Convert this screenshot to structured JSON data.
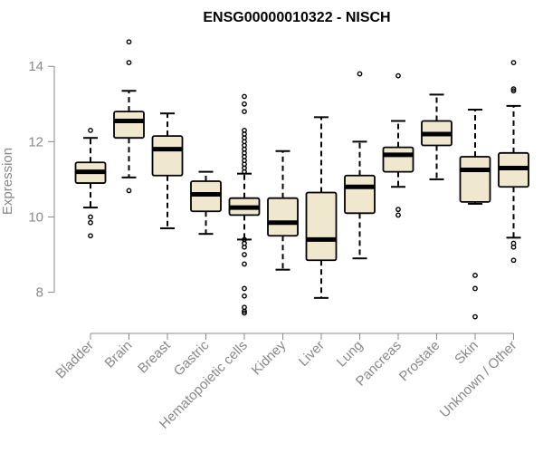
{
  "chart_data": {
    "type": "box",
    "title": "ENSG00000010322 - NISCH",
    "xlabel": "",
    "ylabel": "Expression",
    "ylim": [
      7.1,
      14.8
    ],
    "yticks": [
      8,
      10,
      12,
      14
    ],
    "colors": {
      "box_fill": "#efe8cf",
      "stroke": "#000000",
      "axis": "#888888"
    },
    "categories": [
      "Bladder",
      "Brain",
      "Breast",
      "Gastric",
      "Hematopoietic cells",
      "Kidney",
      "Liver",
      "Lung",
      "Pancreas",
      "Prostate",
      "Skin",
      "Unknown / Other"
    ],
    "boxes": [
      {
        "category": "Bladder",
        "lower_whisker": 10.25,
        "q1": 10.9,
        "median": 11.2,
        "q3": 11.45,
        "upper_whisker": 12.1,
        "outliers": [
          12.3,
          10.0,
          9.85,
          9.5
        ]
      },
      {
        "category": "Brain",
        "lower_whisker": 11.05,
        "q1": 12.1,
        "median": 12.55,
        "q3": 12.8,
        "upper_whisker": 13.35,
        "outliers": [
          14.65,
          14.1,
          10.7
        ]
      },
      {
        "category": "Breast",
        "lower_whisker": 9.7,
        "q1": 11.1,
        "median": 11.8,
        "q3": 12.15,
        "upper_whisker": 12.75,
        "outliers": []
      },
      {
        "category": "Gastric",
        "lower_whisker": 9.55,
        "q1": 10.15,
        "median": 10.6,
        "q3": 10.95,
        "upper_whisker": 11.2,
        "outliers": []
      },
      {
        "category": "Hematopoietic cells",
        "lower_whisker": 9.4,
        "q1": 10.05,
        "median": 10.25,
        "q3": 10.5,
        "upper_whisker": 11.15,
        "outliers": [
          13.2,
          13.0,
          12.8,
          12.3,
          12.2,
          12.1,
          12.0,
          11.9,
          11.8,
          11.7,
          11.6,
          11.5,
          11.4,
          11.3,
          11.2,
          9.4,
          9.3,
          9.2,
          9.0,
          8.75,
          8.1,
          7.9,
          7.6,
          7.5,
          7.45
        ]
      },
      {
        "category": "Kidney",
        "lower_whisker": 8.6,
        "q1": 9.5,
        "median": 9.85,
        "q3": 10.5,
        "upper_whisker": 11.75,
        "outliers": []
      },
      {
        "category": "Liver",
        "lower_whisker": 7.85,
        "q1": 8.85,
        "median": 9.4,
        "q3": 10.65,
        "upper_whisker": 12.65,
        "outliers": []
      },
      {
        "category": "Lung",
        "lower_whisker": 8.9,
        "q1": 10.1,
        "median": 10.8,
        "q3": 11.1,
        "upper_whisker": 12.0,
        "outliers": [
          13.8
        ]
      },
      {
        "category": "Pancreas",
        "lower_whisker": 10.8,
        "q1": 11.2,
        "median": 11.65,
        "q3": 11.85,
        "upper_whisker": 12.55,
        "outliers": [
          13.75,
          10.2,
          10.05
        ]
      },
      {
        "category": "Prostate",
        "lower_whisker": 11.0,
        "q1": 11.9,
        "median": 12.2,
        "q3": 12.55,
        "upper_whisker": 13.25,
        "outliers": []
      },
      {
        "category": "Skin",
        "lower_whisker": 10.35,
        "q1": 10.4,
        "median": 11.25,
        "q3": 11.6,
        "upper_whisker": 12.85,
        "outliers": [
          8.45,
          8.1,
          7.35
        ]
      },
      {
        "category": "Unknown / Other",
        "lower_whisker": 9.45,
        "q1": 10.8,
        "median": 11.3,
        "q3": 11.7,
        "upper_whisker": 12.95,
        "outliers": [
          14.1,
          13.4,
          13.35,
          9.3,
          9.2,
          8.85
        ]
      }
    ]
  }
}
